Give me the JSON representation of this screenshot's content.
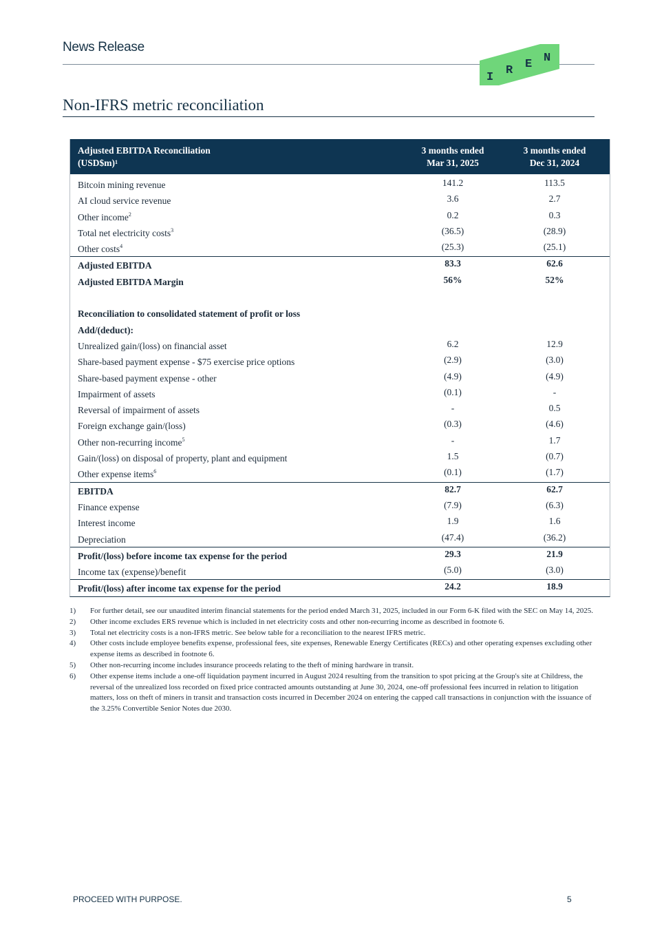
{
  "header": {
    "title": "News Release",
    "logo_text": "IREN",
    "logo_color": "#6fd67a"
  },
  "page_title": "Non-IFRS metric reconciliation",
  "table": {
    "header": {
      "label_line1": "Adjusted EBITDA Reconciliation",
      "label_line2": "(USD$m)",
      "label_sup": "1",
      "col1_line1": "3 months ended",
      "col1_line2": "Mar 31, 2025",
      "col2_line1": "3 months ended",
      "col2_line2": "Dec 31, 2024"
    },
    "rows": [
      {
        "label": "Bitcoin mining revenue",
        "v1": "141.2",
        "v2": "113.5"
      },
      {
        "label": "AI cloud service revenue",
        "v1": "3.6",
        "v2": "2.7"
      },
      {
        "label": "Other income",
        "sup": "2",
        "v1": "0.2",
        "v2": "0.3"
      },
      {
        "label": "Total net electricity costs",
        "sup": "3",
        "v1": "(36.5)",
        "v2": "(28.9)"
      },
      {
        "label": "Other costs",
        "sup": "4",
        "v1": "(25.3)",
        "v2": "(25.1)"
      },
      {
        "label": "Adjusted EBITDA",
        "v1": "83.3",
        "v2": "62.6",
        "bold": true,
        "sep": true
      },
      {
        "label": "Adjusted EBITDA Margin",
        "v1": "56%",
        "v2": "52%",
        "bold": true
      },
      {
        "label": "",
        "v1": "",
        "v2": ""
      },
      {
        "label": "Reconciliation to consolidated statement of profit or loss",
        "v1": "",
        "v2": "",
        "bold": true
      },
      {
        "label": "Add/(deduct):",
        "v1": "",
        "v2": "",
        "bold": true
      },
      {
        "label": "Unrealized gain/(loss) on financial asset",
        "v1": "6.2",
        "v2": "12.9"
      },
      {
        "label": "Share-based payment expense - $75 exercise price options",
        "v1": "(2.9)",
        "v2": "(3.0)"
      },
      {
        "label": "Share-based payment expense - other",
        "v1": "(4.9)",
        "v2": "(4.9)"
      },
      {
        "label": "Impairment of assets",
        "v1": "(0.1)",
        "v2": "-"
      },
      {
        "label": "Reversal of impairment of assets",
        "v1": "-",
        "v2": "0.5"
      },
      {
        "label": "Foreign exchange gain/(loss)",
        "v1": "(0.3)",
        "v2": "(4.6)"
      },
      {
        "label": "Other non-recurring income",
        "sup": "5",
        "v1": "-",
        "v2": "1.7"
      },
      {
        "label": "Gain/(loss) on disposal of property, plant and equipment",
        "v1": "1.5",
        "v2": "(0.7)"
      },
      {
        "label": "Other expense items",
        "sup": "6",
        "v1": "(0.1)",
        "v2": "(1.7)"
      },
      {
        "label": "EBITDA",
        "v1": "82.7",
        "v2": "62.7",
        "bold": true,
        "sep": true
      },
      {
        "label": "Finance expense",
        "v1": "(7.9)",
        "v2": "(6.3)"
      },
      {
        "label": "Interest income",
        "v1": "1.9",
        "v2": "1.6"
      },
      {
        "label": "Depreciation",
        "v1": "(47.4)",
        "v2": "(36.2)"
      },
      {
        "label": "Profit/(loss) before income tax expense for the period",
        "v1": "29.3",
        "v2": "21.9",
        "bold": true,
        "sep": true
      },
      {
        "label": "Income tax (expense)/benefit",
        "v1": "(5.0)",
        "v2": "(3.0)"
      },
      {
        "label": "Profit/(loss) after income tax expense for the period",
        "v1": "24.2",
        "v2": "18.9",
        "bold": true,
        "sep": true
      }
    ]
  },
  "footnotes": [
    {
      "n": "1)",
      "text": "For further detail, see our unaudited interim financial statements for the period ended March 31, 2025, included in our Form 6-K filed with the SEC on May 14, 2025."
    },
    {
      "n": "2)",
      "text": "Other income excludes ERS revenue which is included in net electricity costs and other non-recurring income as described in footnote 6."
    },
    {
      "n": "3)",
      "text": "Total net electricity costs is a non-IFRS metric. See below table for a reconciliation to the nearest IFRS metric."
    },
    {
      "n": "4)",
      "text": "Other costs include employee benefits expense, professional fees, site expenses, Renewable Energy Certificates (RECs) and other operating expenses excluding other expense items as described in footnote 6."
    },
    {
      "n": "5)",
      "text": "Other non-recurring income includes insurance proceeds relating to the theft of mining hardware in transit."
    },
    {
      "n": "6)",
      "text": "Other expense items include a one-off liquidation payment incurred in August 2024 resulting from the transition to spot pricing at the Group's site at Childress, the reversal of the unrealized loss recorded on fixed price contracted amounts outstanding at June 30, 2024, one-off professional fees incurred in relation to litigation matters, loss on theft of miners in transit and transaction costs incurred in December 2024 on entering the capped call transactions in conjunction with the issuance of the 3.25% Convertible Senior Notes due 2030."
    }
  ],
  "footer": {
    "tagline": "PROCEED WITH PURPOSE.",
    "page_number": "5"
  }
}
